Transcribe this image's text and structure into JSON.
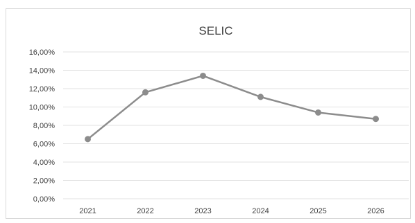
{
  "chart_data": {
    "type": "line",
    "title": "SELIC",
    "xlabel": "",
    "ylabel": "",
    "categories": [
      "2021",
      "2022",
      "2023",
      "2024",
      "2025",
      "2026"
    ],
    "series": [
      {
        "values": [
          6.5,
          11.6,
          13.4,
          11.1,
          9.4,
          8.7
        ]
      }
    ],
    "ylim": [
      0,
      16
    ],
    "y_ticks": [
      "0,00%",
      "2,00%",
      "4,00%",
      "6,00%",
      "8,00%",
      "10,00%",
      "12,00%",
      "14,00%",
      "16,00%"
    ],
    "y_tick_values": [
      0,
      2,
      4,
      6,
      8,
      10,
      12,
      14,
      16
    ],
    "grid": true,
    "legend": "none",
    "colors": {
      "series": "#8c8c8c",
      "grid": "#e2e2e2",
      "text": "#404040"
    }
  }
}
